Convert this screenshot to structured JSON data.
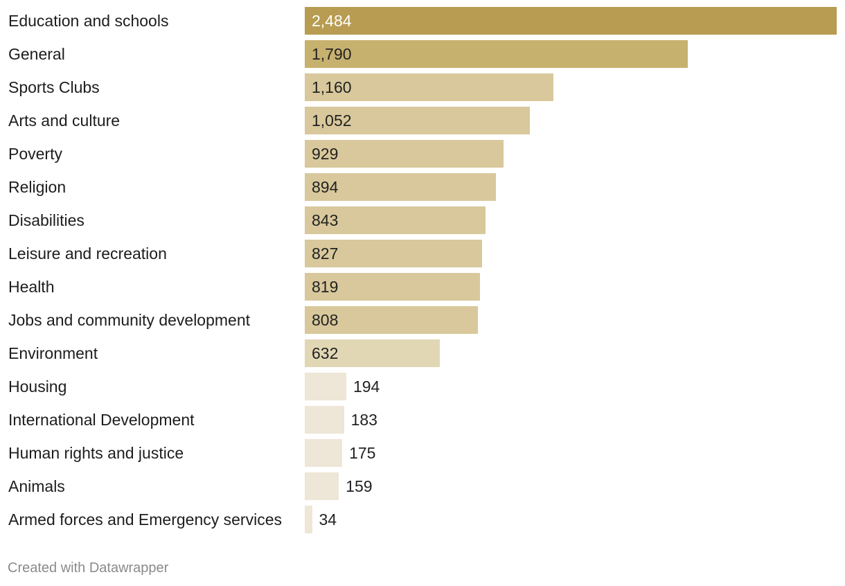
{
  "chart_data": {
    "type": "bar",
    "orientation": "horizontal",
    "title": "",
    "xlabel": "",
    "ylabel": "",
    "categories": [
      "Education and schools",
      "General",
      "Sports Clubs",
      "Arts and culture",
      "Poverty",
      "Religion",
      "Disabilities",
      "Leisure and recreation",
      "Health",
      "Jobs and community development",
      "Environment",
      "Housing",
      "International Development",
      "Human rights and justice",
      "Animals",
      "Armed forces and Emergency services"
    ],
    "values": [
      2484,
      1790,
      1160,
      1052,
      929,
      894,
      843,
      827,
      819,
      808,
      632,
      194,
      183,
      175,
      159,
      34
    ],
    "value_labels": [
      "2,484",
      "1,790",
      "1,160",
      "1,052",
      "929",
      "894",
      "843",
      "827",
      "819",
      "808",
      "632",
      "194",
      "183",
      "175",
      "159",
      "34"
    ],
    "xlim": [
      0,
      2484
    ],
    "grid": false,
    "colors": {
      "tier1": "#b79c51",
      "tier2": "#c7b16f",
      "tier3": "#d8c89b",
      "tier4": "#e2d7b5",
      "tier5": "#eee6d6",
      "value_on_dark": "#ffffff",
      "value_default": "#222222"
    }
  },
  "footer": {
    "credit": "Created with Datawrapper"
  }
}
